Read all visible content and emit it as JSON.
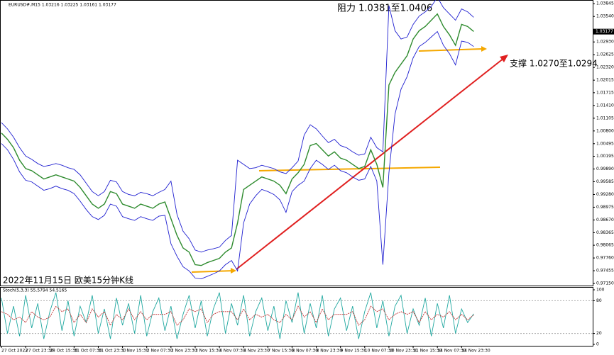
{
  "chart_data": [
    {
      "type": "line",
      "title": "EURUSD#,M15  1.03216 1.03225 1.03161 1.03177",
      "annotations": [
        "阻力 1.0381至1.0406",
        "支撑 1.0270至1.0294",
        "2022年11月15日 欧美15分钟K线"
      ],
      "current_price": 1.03177,
      "categories": [
        "27 Oct 2022",
        null,
        null,
        null,
        "27 Oct 23:30",
        null,
        null,
        null,
        "28 Oct 15:30",
        null,
        null,
        null,
        "31 Oct 07:30",
        null,
        null,
        null,
        "31 Oct 23:30",
        null,
        null,
        null,
        "1 Nov 15:30",
        null,
        null,
        null,
        "2 Nov 07:30",
        null,
        null,
        null,
        "2 Nov 23:30",
        null,
        null,
        null,
        "3 Nov 15:30",
        null,
        null,
        null,
        "4 Nov 07:30",
        null,
        null,
        null,
        "4 Nov 23:30",
        null,
        null,
        null,
        "7 Nov 15:30",
        null,
        null,
        null,
        "8 Nov 07:30",
        null,
        null,
        null,
        "8 Nov 23:30",
        null,
        null,
        null,
        "9 Nov 15:30",
        null,
        null,
        null,
        "10 Nov 07:30",
        null,
        null,
        null,
        "10 Nov 23:30",
        null,
        null,
        null,
        "11 Nov 15:30",
        null,
        null,
        null,
        "14 Nov 07:30",
        null,
        null,
        null,
        "14 Nov 23:30",
        null,
        null
      ],
      "series": [
        {
          "color": "#1f1fd0",
          "values": [
            1.01,
            1.0085,
            1.0065,
            1.004,
            1.002,
            1.0012,
            1.0002,
            0.9995,
            0.9998,
            1.0002,
            0.9998,
            0.9992,
            0.9988,
            0.9975,
            0.9955,
            0.9935,
            0.9925,
            0.9935,
            0.9962,
            0.9958,
            0.9935,
            0.9928,
            0.9925,
            0.9933,
            0.993,
            0.9925,
            0.9933,
            0.994,
            0.996,
            0.988,
            0.984,
            0.9822,
            0.9795,
            0.979,
            0.9795,
            0.9798,
            0.9802,
            0.9818,
            0.983,
            1.001,
            1.0,
            0.999,
            0.9992,
            0.9998,
            0.9994,
            0.999,
            0.9982,
            0.9978,
            0.9992,
            1.0008,
            1.007,
            1.0095,
            1.0085,
            1.0068,
            1.0052,
            1.006,
            1.0045,
            1.004,
            1.003,
            1.0022,
            1.0025,
            1.0065,
            1.004,
            1.003,
            1.038,
            1.032,
            1.03,
            1.0305,
            1.0335,
            1.0355,
            1.0365,
            1.0378,
            1.04,
            1.0375,
            1.036,
            1.0345,
            1.0372,
            1.0365,
            1.0352
          ]
        },
        {
          "color": "#1f1fd0",
          "values": [
            1.005,
            1.0035,
            1.0012,
            0.9982,
            0.9962,
            0.9958,
            0.9948,
            0.9938,
            0.9942,
            0.9948,
            0.9942,
            0.9938,
            0.993,
            0.9912,
            0.9892,
            0.9875,
            0.9868,
            0.9878,
            0.9905,
            0.99,
            0.9875,
            0.987,
            0.9866,
            0.9875,
            0.987,
            0.9866,
            0.9876,
            0.9878,
            0.981,
            0.978,
            0.9755,
            0.9745,
            0.9728,
            0.9726,
            0.9732,
            0.9738,
            0.9745,
            0.976,
            0.977,
            0.9745,
            0.986,
            0.9905,
            0.9925,
            0.994,
            0.9935,
            0.9928,
            0.9915,
            0.9885,
            0.9935,
            0.995,
            0.996,
            0.999,
            1.001,
            1.0,
            0.9988,
            0.9998,
            0.9985,
            0.998,
            0.997,
            0.9962,
            0.9965,
            0.9995,
            0.996,
            0.976,
            0.998,
            1.012,
            1.018,
            1.021,
            1.0255,
            1.0282,
            1.0292,
            1.0305,
            1.0318,
            1.0285,
            1.0265,
            1.0238,
            1.0295,
            1.0292,
            1.0282
          ]
        },
        {
          "color": "#2e8b2e",
          "values": [
            1.0075,
            1.006,
            1.004,
            1.001,
            0.999,
            0.9985,
            0.9975,
            0.9965,
            0.997,
            0.9975,
            0.997,
            0.9965,
            0.996,
            0.9945,
            0.9925,
            0.9905,
            0.9895,
            0.9905,
            0.9935,
            0.993,
            0.9905,
            0.99,
            0.9895,
            0.9905,
            0.99,
            0.9895,
            0.9905,
            0.991,
            0.987,
            0.983,
            0.98,
            0.979,
            0.976,
            0.9758,
            0.9765,
            0.977,
            0.9775,
            0.979,
            0.98,
            0.986,
            0.994,
            0.995,
            0.996,
            0.997,
            0.9965,
            0.996,
            0.995,
            0.993,
            0.9965,
            0.998,
            1.0,
            1.0045,
            1.005,
            1.0035,
            1.002,
            1.003,
            1.0015,
            1.001,
            1.0,
            0.999,
            0.9995,
            1.0035,
            1.0,
            0.9945,
            1.019,
            1.022,
            1.024,
            1.026,
            1.03,
            1.032,
            1.033,
            1.0345,
            1.036,
            1.033,
            1.031,
            1.0285,
            1.0335,
            1.033,
            1.0318
          ]
        }
      ],
      "ylim": [
        0.971,
        1.039
      ],
      "yticks": [
        1.03845,
        {
          "value": 1.0354,
          "label": "1.03540"
        },
        {
          "value": 1.0293,
          "label": "1.02930"
        },
        1.02625,
        {
          "value": 1.0232,
          "label": "1.02320"
        },
        1.02015,
        1.01715,
        {
          "value": 1.0141,
          "label": "1.01410"
        },
        1.01105,
        {
          "value": 1.008,
          "label": "1.00800"
        },
        1.00495,
        1.00195,
        {
          "value": 0.9989,
          "label": "0.99890"
        },
        0.99585,
        {
          "value": 0.9928,
          "label": "0.99280"
        },
        0.98975,
        {
          "value": 0.9867,
          "label": "0.98670"
        },
        0.98365,
        0.98065,
        {
          "value": 0.9776,
          "label": "0.97760"
        },
        0.97455,
        {
          "value": 0.9715,
          "label": "0.97150"
        }
      ]
    },
    {
      "type": "line",
      "title": "Stoch(5,3,3) 55.5794 54.5165",
      "series": [
        {
          "color": "#20a8a0",
          "values": [
            85,
            20,
            70,
            15,
            90,
            30,
            75,
            10,
            60,
            95,
            25,
            80,
            15,
            70,
            40,
            90,
            20,
            65,
            10,
            85,
            35,
            75,
            20,
            90,
            15,
            60,
            85,
            25,
            70,
            10,
            55,
            90,
            30,
            80,
            15,
            65,
            95,
            20,
            75,
            35,
            90,
            15,
            60,
            85,
            25,
            70,
            10,
            80,
            40,
            95,
            20,
            75,
            30,
            90,
            15,
            65,
            85,
            25,
            70,
            10,
            60,
            95,
            30,
            80,
            15,
            70,
            90,
            20,
            65,
            35,
            85,
            15,
            75,
            30,
            90,
            20,
            65,
            40,
            56
          ]
        },
        {
          "color": "#c03030",
          "dashed": true,
          "values": [
            60,
            55,
            45,
            50,
            40,
            60,
            50,
            45,
            50,
            70,
            60,
            65,
            40,
            55,
            40,
            65,
            50,
            60,
            35,
            55,
            45,
            65,
            45,
            60,
            45,
            55,
            55,
            55,
            60,
            35,
            45,
            65,
            60,
            65,
            40,
            55,
            60,
            60,
            60,
            45,
            65,
            45,
            55,
            50,
            55,
            45,
            40,
            55,
            45,
            70,
            50,
            60,
            40,
            65,
            45,
            55,
            55,
            55,
            60,
            35,
            45,
            70,
            60,
            65,
            45,
            55,
            60,
            55,
            60,
            40,
            60,
            45,
            55,
            50,
            60,
            45,
            55,
            45,
            54
          ]
        }
      ],
      "ylim": [
        0,
        100
      ],
      "yticks": [
        100,
        80,
        20,
        0
      ]
    }
  ]
}
